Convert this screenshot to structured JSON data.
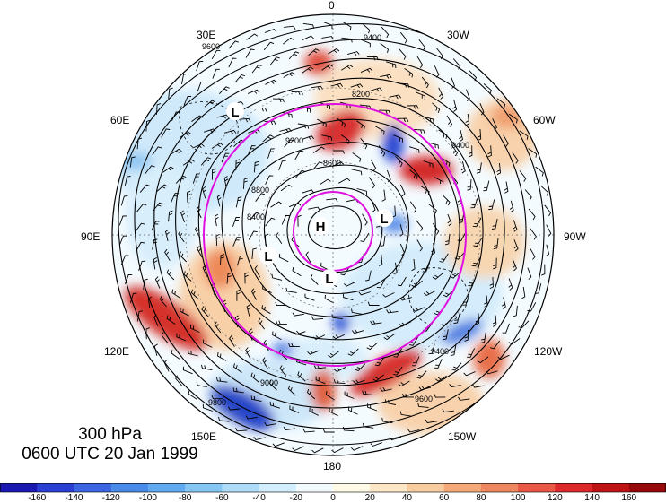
{
  "title": {
    "level": "300 hPa",
    "time": "0600 UTC 20 Jan 1999"
  },
  "longitude_labels": [
    "0",
    "30W",
    "60W",
    "90W",
    "120W",
    "150W",
    "180",
    "150E",
    "120E",
    "90E",
    "60E",
    "30E"
  ],
  "pressure_centers": [
    "H",
    "L",
    "L",
    "L",
    "L"
  ],
  "contour_labels": [
    "9600",
    "9400",
    "9200",
    "8800",
    "8600",
    "8400",
    "8200",
    "9000",
    "9800"
  ],
  "colorbar": {
    "ticks": [
      "-160",
      "-140",
      "-120",
      "-100",
      "-80",
      "-60",
      "-40",
      "-20",
      "0",
      "20",
      "40",
      "60",
      "80",
      "100",
      "120",
      "140",
      "160"
    ],
    "colors": [
      "#1a1ab0",
      "#2a40d0",
      "#3a66e0",
      "#4a8ae8",
      "#62aaf0",
      "#86c6f4",
      "#aedcf8",
      "#d2eefc",
      "#f2fafe",
      "#fefae6",
      "#fce6c6",
      "#f8cc9e",
      "#f4aa78",
      "#ee8660",
      "#e85a46",
      "#dc2a2a",
      "#be1414",
      "#960a0a"
    ]
  },
  "colors": {
    "circle": "#e010e0",
    "contour": "#000000",
    "positive_anomaly": "#dc2a2a",
    "negative_anomaly": "#2a40d0"
  }
}
